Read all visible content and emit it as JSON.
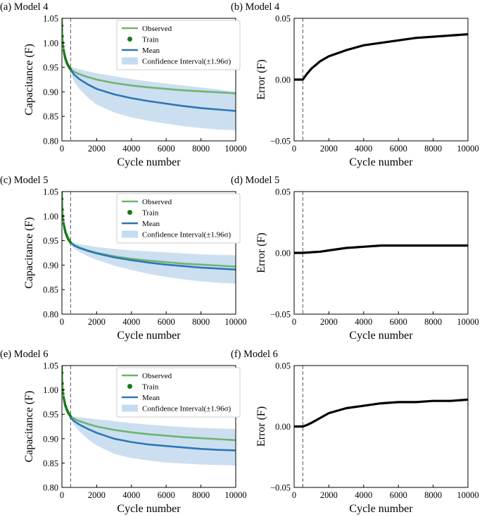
{
  "chart_data": [
    {
      "type": "line",
      "panel_label": "(a) Model 4",
      "xlabel": "Cycle number",
      "ylabel": "Capacitance (F)",
      "xlim": [
        0,
        10000
      ],
      "ylim": [
        0.8,
        1.05
      ],
      "xticks": [
        "0",
        "2000",
        "4000",
        "6000",
        "8000",
        "10000"
      ],
      "yticks": [
        "0.80",
        "0.85",
        "0.90",
        "0.95",
        "1.00",
        "1.05"
      ],
      "train_split": 500,
      "legend": {
        "position": "top-right",
        "entries": [
          "Observed",
          "Train",
          "Mean",
          "Confidence Interval(±1.96σ)"
        ]
      },
      "series": [
        {
          "name": "Observed",
          "color": "#6fb46f",
          "x": [
            0,
            10,
            30,
            60,
            100,
            150,
            200,
            300,
            400,
            500,
            700,
            1000,
            1500,
            2000,
            3000,
            4000,
            5000,
            6000,
            7000,
            8000,
            9000,
            10000
          ],
          "y": [
            1.1,
            1.05,
            1.02,
            1.0,
            0.985,
            0.975,
            0.968,
            0.958,
            0.951,
            0.946,
            0.941,
            0.936,
            0.93,
            0.925,
            0.918,
            0.913,
            0.909,
            0.906,
            0.903,
            0.901,
            0.899,
            0.897
          ]
        },
        {
          "name": "Mean",
          "color": "#2b76b8",
          "x": [
            500,
            700,
            1000,
            1500,
            2000,
            3000,
            4000,
            5000,
            6000,
            7000,
            8000,
            9000,
            10000
          ],
          "y": [
            0.946,
            0.935,
            0.926,
            0.915,
            0.906,
            0.895,
            0.887,
            0.881,
            0.876,
            0.871,
            0.867,
            0.864,
            0.861
          ]
        },
        {
          "name": "Confidence Interval(±1.96σ)",
          "color": "#c6dcee",
          "x": [
            500,
            700,
            1000,
            1500,
            2000,
            3000,
            4000,
            5000,
            6000,
            7000,
            8000,
            9000,
            10000
          ],
          "upper": [
            0.952,
            0.949,
            0.946,
            0.942,
            0.938,
            0.932,
            0.926,
            0.921,
            0.917,
            0.913,
            0.909,
            0.905,
            0.9
          ],
          "lower": [
            0.94,
            0.921,
            0.906,
            0.888,
            0.874,
            0.858,
            0.848,
            0.841,
            0.835,
            0.83,
            0.826,
            0.823,
            0.822
          ]
        }
      ]
    },
    {
      "type": "line",
      "panel_label": "(b) Model 4",
      "xlabel": "Cycle number",
      "ylabel": "Error (F)",
      "xlim": [
        0,
        10000
      ],
      "ylim": [
        -0.05,
        0.05
      ],
      "xticks": [
        "0",
        "2000",
        "4000",
        "6000",
        "8000",
        "10000"
      ],
      "yticks": [
        "−0.05",
        "0.00",
        "0.05"
      ],
      "train_split": 500,
      "series": [
        {
          "color": "#000000",
          "x": [
            0,
            200,
            400,
            500,
            700,
            1000,
            1500,
            2000,
            3000,
            4000,
            5000,
            6000,
            7000,
            8000,
            9000,
            10000
          ],
          "y": [
            0.0,
            0.0,
            0.0,
            0.0,
            0.004,
            0.009,
            0.015,
            0.019,
            0.024,
            0.028,
            0.03,
            0.032,
            0.034,
            0.035,
            0.036,
            0.037
          ]
        }
      ]
    },
    {
      "type": "line",
      "panel_label": "(c) Model 5",
      "xlabel": "Cycle number",
      "ylabel": "Capacitance (F)",
      "xlim": [
        0,
        10000
      ],
      "ylim": [
        0.8,
        1.05
      ],
      "xticks": [
        "0",
        "2000",
        "4000",
        "6000",
        "8000",
        "10000"
      ],
      "yticks": [
        "0.80",
        "0.85",
        "0.90",
        "0.95",
        "1.00",
        "1.05"
      ],
      "train_split": 500,
      "legend": {
        "position": "top-right",
        "entries": [
          "Observed",
          "Train",
          "Mean",
          "Confidence Interval(±1.96σ)"
        ]
      },
      "series": [
        {
          "name": "Observed",
          "color": "#6fb46f",
          "x": [
            0,
            10,
            30,
            60,
            100,
            150,
            200,
            300,
            400,
            500,
            700,
            1000,
            1500,
            2000,
            3000,
            4000,
            5000,
            6000,
            7000,
            8000,
            9000,
            10000
          ],
          "y": [
            1.1,
            1.05,
            1.02,
            1.0,
            0.985,
            0.975,
            0.968,
            0.958,
            0.951,
            0.946,
            0.941,
            0.936,
            0.93,
            0.925,
            0.918,
            0.913,
            0.909,
            0.906,
            0.903,
            0.901,
            0.899,
            0.897
          ]
        },
        {
          "name": "Mean",
          "color": "#2b76b8",
          "x": [
            500,
            700,
            1000,
            1500,
            2000,
            3000,
            4000,
            5000,
            6000,
            7000,
            8000,
            9000,
            10000
          ],
          "y": [
            0.946,
            0.94,
            0.935,
            0.929,
            0.924,
            0.916,
            0.91,
            0.905,
            0.901,
            0.898,
            0.895,
            0.893,
            0.891
          ]
        },
        {
          "name": "Confidence Interval(±1.96σ)",
          "color": "#c6dcee",
          "x": [
            500,
            700,
            1000,
            1500,
            2000,
            3000,
            4000,
            5000,
            6000,
            7000,
            8000,
            9000,
            10000
          ],
          "upper": [
            0.95,
            0.946,
            0.943,
            0.94,
            0.937,
            0.933,
            0.93,
            0.928,
            0.926,
            0.924,
            0.922,
            0.921,
            0.92
          ],
          "lower": [
            0.942,
            0.934,
            0.927,
            0.918,
            0.911,
            0.899,
            0.89,
            0.882,
            0.876,
            0.871,
            0.867,
            0.864,
            0.862
          ]
        }
      ]
    },
    {
      "type": "line",
      "panel_label": "(d) Model 5",
      "xlabel": "Cycle number",
      "ylabel": "Error (F)",
      "xlim": [
        0,
        10000
      ],
      "ylim": [
        -0.05,
        0.05
      ],
      "xticks": [
        "0",
        "2000",
        "4000",
        "6000",
        "8000",
        "10000"
      ],
      "yticks": [
        "−0.05",
        "0.00",
        "0.05"
      ],
      "train_split": 500,
      "series": [
        {
          "color": "#000000",
          "x": [
            0,
            500,
            1000,
            1500,
            2000,
            3000,
            4000,
            5000,
            6000,
            7000,
            8000,
            9000,
            10000
          ],
          "y": [
            0.0,
            0.0,
            0.0005,
            0.001,
            0.002,
            0.004,
            0.005,
            0.006,
            0.006,
            0.006,
            0.006,
            0.006,
            0.006
          ]
        }
      ]
    },
    {
      "type": "line",
      "panel_label": "(e) Model 6",
      "xlabel": "Cycle number",
      "ylabel": "Capacitance (F)",
      "xlim": [
        0,
        10000
      ],
      "ylim": [
        0.8,
        1.05
      ],
      "xticks": [
        "0",
        "2000",
        "4000",
        "6000",
        "8000",
        "10000"
      ],
      "yticks": [
        "0.80",
        "0.85",
        "0.90",
        "0.95",
        "1.00",
        "1.05"
      ],
      "train_split": 500,
      "legend": {
        "position": "top-right",
        "entries": [
          "Observed",
          "Train",
          "Mean",
          "Confidence Interval(±1.96σ)"
        ]
      },
      "series": [
        {
          "name": "Observed",
          "color": "#6fb46f",
          "x": [
            0,
            10,
            30,
            60,
            100,
            150,
            200,
            300,
            400,
            500,
            700,
            1000,
            1500,
            2000,
            3000,
            4000,
            5000,
            6000,
            7000,
            8000,
            9000,
            10000
          ],
          "y": [
            1.1,
            1.05,
            1.02,
            1.0,
            0.985,
            0.975,
            0.968,
            0.958,
            0.951,
            0.946,
            0.941,
            0.936,
            0.93,
            0.925,
            0.918,
            0.913,
            0.909,
            0.906,
            0.903,
            0.901,
            0.899,
            0.897
          ]
        },
        {
          "name": "Mean",
          "color": "#2b76b8",
          "x": [
            500,
            700,
            1000,
            1500,
            2000,
            3000,
            4000,
            5000,
            6000,
            7000,
            8000,
            9000,
            10000
          ],
          "y": [
            0.943,
            0.936,
            0.929,
            0.92,
            0.912,
            0.9,
            0.893,
            0.888,
            0.885,
            0.882,
            0.879,
            0.877,
            0.876
          ]
        },
        {
          "name": "Confidence Interval(±1.96σ)",
          "color": "#c6dcee",
          "x": [
            500,
            700,
            1000,
            1500,
            2000,
            3000,
            4000,
            5000,
            6000,
            7000,
            8000,
            9000,
            10000
          ],
          "upper": [
            0.946,
            0.945,
            0.944,
            0.942,
            0.94,
            0.936,
            0.932,
            0.929,
            0.926,
            0.924,
            0.922,
            0.921,
            0.92
          ],
          "lower": [
            0.94,
            0.928,
            0.915,
            0.899,
            0.886,
            0.869,
            0.86,
            0.855,
            0.851,
            0.849,
            0.847,
            0.846,
            0.845
          ]
        }
      ]
    },
    {
      "type": "line",
      "panel_label": "(f) Model 6",
      "xlabel": "Cycle number",
      "ylabel": "Error (F)",
      "xlim": [
        0,
        10000
      ],
      "ylim": [
        -0.05,
        0.05
      ],
      "xticks": [
        "0",
        "2000",
        "4000",
        "6000",
        "8000",
        "10000"
      ],
      "yticks": [
        "−0.05",
        "0.00",
        "0.05"
      ],
      "train_split": 500,
      "series": [
        {
          "color": "#000000",
          "x": [
            0,
            200,
            400,
            500,
            700,
            1000,
            1500,
            2000,
            3000,
            4000,
            5000,
            6000,
            7000,
            8000,
            9000,
            10000
          ],
          "y": [
            0.0,
            0.0,
            0.0,
            0.0,
            0.001,
            0.003,
            0.007,
            0.011,
            0.015,
            0.017,
            0.019,
            0.02,
            0.02,
            0.021,
            0.021,
            0.022
          ]
        }
      ]
    }
  ]
}
